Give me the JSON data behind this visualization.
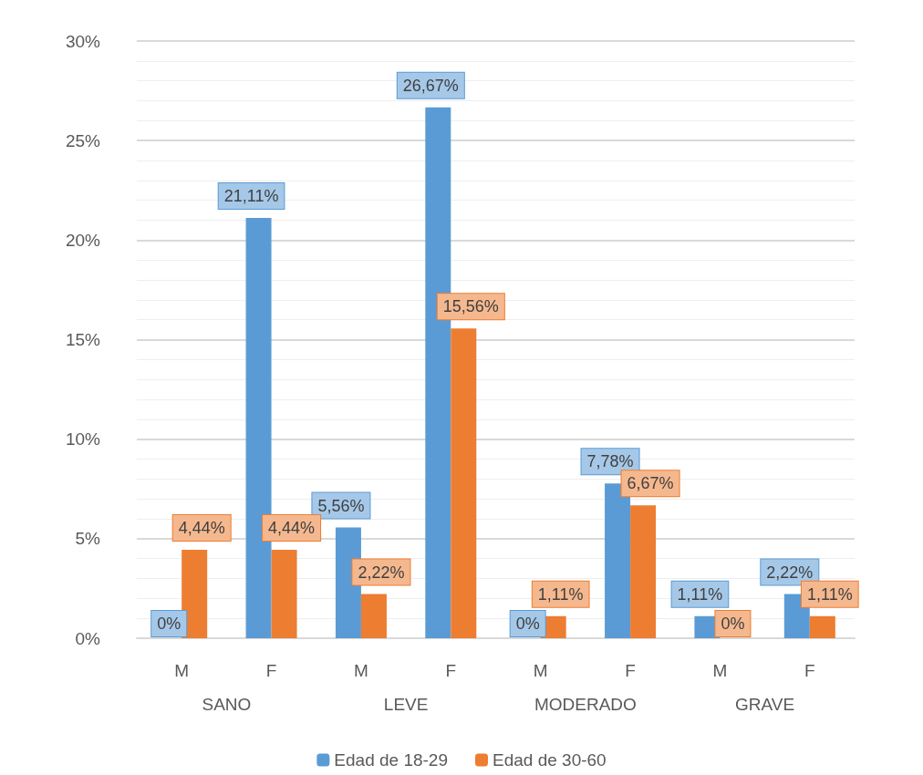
{
  "chart_data": {
    "type": "bar",
    "categories": [
      "M",
      "F",
      "M",
      "F",
      "M",
      "F",
      "M",
      "F"
    ],
    "annotations": [
      "SANO",
      "LEVE",
      "MODERADO",
      "GRAVE"
    ],
    "series": [
      {
        "name": "Edad de 18-29",
        "color": "#5b9bd5",
        "values": [
          0,
          21.11,
          5.56,
          26.67,
          0,
          7.78,
          1.11,
          2.22
        ],
        "value_labels": [
          "0%",
          "21,11%",
          "5,56%",
          "26,67%",
          "0%",
          "7,78%",
          "1,11%",
          "2,22%"
        ]
      },
      {
        "name": "Edad de 30-60",
        "color": "#ed7d31",
        "values": [
          4.44,
          4.44,
          2.22,
          15.56,
          1.11,
          6.67,
          0,
          1.11
        ],
        "value_labels": [
          "4,44%",
          "4,44%",
          "2,22%",
          "15,56%",
          "1,11%",
          "6,67%",
          "0%",
          "1,11%"
        ]
      }
    ],
    "ylim": [
      0,
      30
    ],
    "yticks": [
      {
        "value": 0,
        "label": "0%"
      },
      {
        "value": 5,
        "label": "5%"
      },
      {
        "value": 10,
        "label": "10%"
      },
      {
        "value": 15,
        "label": "15%"
      },
      {
        "value": 20,
        "label": "20%"
      },
      {
        "value": 25,
        "label": "25%"
      },
      {
        "value": 30,
        "label": "30%"
      }
    ],
    "grid": "y",
    "legend": "bottom"
  }
}
